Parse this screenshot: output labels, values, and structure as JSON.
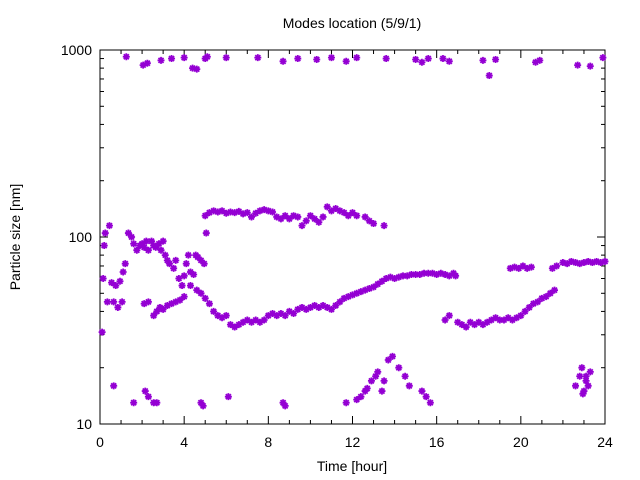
{
  "chart_data": {
    "type": "scatter",
    "title": "Modes location (5/9/1)",
    "xlabel": "Time [hour]",
    "ylabel": "Particle size [nm]",
    "xlim": [
      0,
      24
    ],
    "ylim": [
      10,
      1000
    ],
    "yscale": "log",
    "grid": false,
    "legend": "none",
    "marker": "asterisk",
    "color": "#9400d3",
    "x_ticks": [
      0,
      4,
      8,
      12,
      16,
      20,
      24
    ],
    "y_ticks": [
      10,
      100,
      1000
    ],
    "x_tick_labels": [
      "0",
      "4",
      "8",
      "12",
      "16",
      "20",
      "24"
    ],
    "y_tick_labels": [
      "10",
      "100",
      "1000"
    ],
    "series": [
      {
        "points": [
          [
            1.25,
            920
          ],
          [
            2.05,
            830
          ],
          [
            2.25,
            850
          ],
          [
            2.9,
            880
          ],
          [
            3.4,
            900
          ],
          [
            4.0,
            910
          ],
          [
            4.4,
            800
          ],
          [
            4.6,
            790
          ],
          [
            5.0,
            900
          ],
          [
            5.1,
            920
          ],
          [
            6.0,
            910
          ],
          [
            7.5,
            910
          ],
          [
            8.7,
            870
          ],
          [
            9.4,
            900
          ],
          [
            10.3,
            890
          ],
          [
            11.0,
            910
          ],
          [
            11.7,
            870
          ],
          [
            12.2,
            910
          ],
          [
            13.6,
            900
          ],
          [
            15.0,
            890
          ],
          [
            15.3,
            860
          ],
          [
            15.6,
            900
          ],
          [
            16.3,
            900
          ],
          [
            16.6,
            870
          ],
          [
            18.2,
            880
          ],
          [
            18.5,
            730
          ],
          [
            18.8,
            890
          ],
          [
            20.7,
            860
          ],
          [
            20.9,
            880
          ],
          [
            22.7,
            830
          ],
          [
            23.3,
            820
          ],
          [
            23.9,
            910
          ]
        ]
      },
      {
        "points": [
          [
            0.1,
            31
          ],
          [
            0.15,
            60
          ],
          [
            0.2,
            90
          ],
          [
            0.25,
            105
          ],
          [
            0.35,
            45
          ],
          [
            0.45,
            115
          ],
          [
            0.55,
            57
          ],
          [
            0.65,
            45
          ],
          [
            0.75,
            55
          ],
          [
            0.85,
            42
          ],
          [
            0.95,
            58
          ],
          [
            1.05,
            45
          ],
          [
            1.1,
            65
          ],
          [
            1.2,
            72
          ],
          [
            1.35,
            105
          ],
          [
            1.5,
            100
          ],
          [
            1.6,
            92
          ],
          [
            1.75,
            85
          ],
          [
            1.9,
            90
          ],
          [
            2.0,
            92
          ],
          [
            2.1,
            88
          ],
          [
            2.2,
            95
          ],
          [
            2.3,
            85
          ],
          [
            2.45,
            95
          ],
          [
            2.55,
            90
          ],
          [
            2.65,
            88
          ],
          [
            2.8,
            92
          ],
          [
            2.9,
            85
          ],
          [
            3.0,
            95
          ],
          [
            3.1,
            80
          ],
          [
            3.2,
            75
          ],
          [
            3.3,
            72
          ],
          [
            3.5,
            68
          ],
          [
            3.6,
            75
          ],
          [
            3.75,
            60
          ],
          [
            3.9,
            55
          ],
          [
            4.0,
            62
          ],
          [
            4.1,
            72
          ],
          [
            4.2,
            80
          ],
          [
            4.3,
            65
          ],
          [
            4.45,
            63
          ],
          [
            4.55,
            80
          ],
          [
            4.65,
            78
          ],
          [
            4.8,
            75
          ],
          [
            4.95,
            72
          ],
          [
            5.05,
            105
          ],
          [
            2.1,
            44
          ],
          [
            2.3,
            45
          ],
          [
            2.55,
            38
          ],
          [
            2.7,
            40
          ],
          [
            2.85,
            42
          ],
          [
            3.0,
            41
          ],
          [
            3.2,
            43
          ],
          [
            3.4,
            44
          ],
          [
            3.6,
            45
          ],
          [
            3.8,
            46
          ],
          [
            4.0,
            48
          ],
          [
            4.3,
            55
          ],
          [
            4.6,
            52
          ],
          [
            4.8,
            50
          ],
          [
            5.0,
            47
          ],
          [
            5.2,
            44
          ],
          [
            5.4,
            40
          ],
          [
            5.6,
            38
          ],
          [
            5.8,
            37
          ],
          [
            6.0,
            38
          ],
          [
            6.2,
            34
          ],
          [
            6.4,
            33
          ],
          [
            6.6,
            34
          ],
          [
            6.8,
            35
          ],
          [
            7.0,
            36
          ],
          [
            7.2,
            35
          ],
          [
            7.4,
            36
          ],
          [
            7.6,
            35
          ],
          [
            7.8,
            36
          ],
          [
            8.0,
            38
          ],
          [
            8.2,
            39
          ],
          [
            8.4,
            38
          ],
          [
            8.6,
            39
          ],
          [
            8.8,
            38
          ],
          [
            9.0,
            40
          ],
          [
            9.2,
            39
          ],
          [
            9.4,
            41
          ],
          [
            9.6,
            42
          ],
          [
            9.8,
            41
          ],
          [
            10.0,
            42
          ],
          [
            10.2,
            43
          ],
          [
            10.4,
            42
          ],
          [
            10.6,
            43
          ],
          [
            10.8,
            42
          ],
          [
            11.0,
            41
          ],
          [
            11.2,
            43
          ],
          [
            11.4,
            45
          ],
          [
            11.6,
            47
          ],
          [
            11.8,
            48
          ],
          [
            12.0,
            49
          ],
          [
            12.2,
            50
          ],
          [
            12.4,
            51
          ],
          [
            12.6,
            52
          ],
          [
            12.8,
            53
          ],
          [
            13.0,
            54
          ],
          [
            13.2,
            56
          ],
          [
            13.4,
            58
          ],
          [
            13.6,
            60
          ],
          [
            13.8,
            61
          ],
          [
            14.0,
            60
          ],
          [
            14.2,
            61
          ],
          [
            14.4,
            62
          ],
          [
            14.6,
            62
          ],
          [
            14.8,
            63
          ],
          [
            15.0,
            63
          ],
          [
            15.2,
            63
          ],
          [
            15.4,
            64
          ],
          [
            15.6,
            64
          ],
          [
            15.8,
            64
          ],
          [
            16.0,
            63
          ],
          [
            16.2,
            64
          ],
          [
            16.4,
            63
          ],
          [
            16.6,
            62
          ],
          [
            16.8,
            64
          ],
          [
            16.9,
            62
          ],
          [
            5.0,
            130
          ],
          [
            5.2,
            135
          ],
          [
            5.4,
            138
          ],
          [
            5.6,
            136
          ],
          [
            5.8,
            138
          ],
          [
            6.0,
            134
          ],
          [
            6.2,
            136
          ],
          [
            6.4,
            135
          ],
          [
            6.6,
            137
          ],
          [
            6.8,
            133
          ],
          [
            7.0,
            135
          ],
          [
            7.2,
            128
          ],
          [
            7.4,
            134
          ],
          [
            7.6,
            138
          ],
          [
            7.8,
            140
          ],
          [
            8.0,
            138
          ],
          [
            8.2,
            136
          ],
          [
            8.4,
            128
          ],
          [
            8.6,
            125
          ],
          [
            8.8,
            130
          ],
          [
            9.0,
            125
          ],
          [
            9.2,
            130
          ],
          [
            9.4,
            128
          ],
          [
            9.6,
            115
          ],
          [
            9.8,
            122
          ],
          [
            10.0,
            130
          ],
          [
            10.2,
            125
          ],
          [
            10.4,
            120
          ],
          [
            10.6,
            128
          ],
          [
            10.8,
            145
          ],
          [
            11.0,
            138
          ],
          [
            11.2,
            142
          ],
          [
            11.4,
            138
          ],
          [
            11.6,
            135
          ],
          [
            11.8,
            130
          ],
          [
            12.0,
            135
          ],
          [
            12.2,
            130
          ],
          [
            12.6,
            128
          ],
          [
            12.8,
            122
          ],
          [
            13.0,
            118
          ],
          [
            13.5,
            115
          ],
          [
            16.4,
            36
          ],
          [
            16.6,
            38
          ],
          [
            17.0,
            35
          ],
          [
            17.2,
            34
          ],
          [
            17.4,
            33
          ],
          [
            17.6,
            35
          ],
          [
            17.8,
            34
          ],
          [
            18.0,
            35
          ],
          [
            18.2,
            34
          ],
          [
            18.4,
            35
          ],
          [
            18.6,
            36
          ],
          [
            18.8,
            37
          ],
          [
            19.0,
            36
          ],
          [
            19.2,
            36
          ],
          [
            19.4,
            37
          ],
          [
            19.6,
            36
          ],
          [
            19.8,
            37
          ],
          [
            20.0,
            38
          ],
          [
            20.2,
            40
          ],
          [
            20.4,
            42
          ],
          [
            20.6,
            44
          ],
          [
            20.8,
            45
          ],
          [
            21.0,
            47
          ],
          [
            21.2,
            48
          ],
          [
            21.4,
            50
          ],
          [
            21.6,
            52
          ],
          [
            19.5,
            68
          ],
          [
            19.7,
            69
          ],
          [
            19.9,
            68
          ],
          [
            20.1,
            70
          ],
          [
            20.3,
            68
          ],
          [
            20.5,
            69
          ],
          [
            21.5,
            68
          ],
          [
            21.7,
            70
          ],
          [
            22.0,
            73
          ],
          [
            22.2,
            72
          ],
          [
            22.4,
            74
          ],
          [
            22.6,
            73
          ],
          [
            22.8,
            72
          ],
          [
            23.0,
            73
          ],
          [
            23.2,
            74
          ],
          [
            23.4,
            73
          ],
          [
            23.6,
            74
          ],
          [
            23.8,
            73
          ],
          [
            24.0,
            74
          ]
        ]
      },
      {
        "points": [
          [
            0.65,
            16
          ],
          [
            1.6,
            13
          ],
          [
            2.15,
            15
          ],
          [
            2.3,
            14
          ],
          [
            2.55,
            13
          ],
          [
            2.7,
            13
          ],
          [
            4.8,
            13
          ],
          [
            4.9,
            12.5
          ],
          [
            6.1,
            14
          ],
          [
            8.7,
            13
          ],
          [
            8.8,
            12.5
          ],
          [
            11.7,
            13
          ],
          [
            12.2,
            13.5
          ],
          [
            12.4,
            14
          ],
          [
            12.6,
            15
          ],
          [
            12.7,
            15.5
          ],
          [
            12.9,
            17
          ],
          [
            13.1,
            18
          ],
          [
            13.2,
            19
          ],
          [
            13.4,
            15
          ],
          [
            13.5,
            17
          ],
          [
            13.7,
            22
          ],
          [
            13.9,
            23
          ],
          [
            14.2,
            20
          ],
          [
            14.5,
            18
          ],
          [
            14.7,
            16
          ],
          [
            15.3,
            15
          ],
          [
            15.5,
            14
          ],
          [
            15.7,
            13
          ],
          [
            22.6,
            16
          ],
          [
            22.8,
            18
          ],
          [
            22.9,
            20
          ],
          [
            23.1,
            17
          ],
          [
            23.3,
            19
          ],
          [
            23.0,
            15
          ],
          [
            22.95,
            14.5
          ],
          [
            23.2,
            16
          ],
          [
            23.1,
            18
          ]
        ]
      }
    ]
  }
}
